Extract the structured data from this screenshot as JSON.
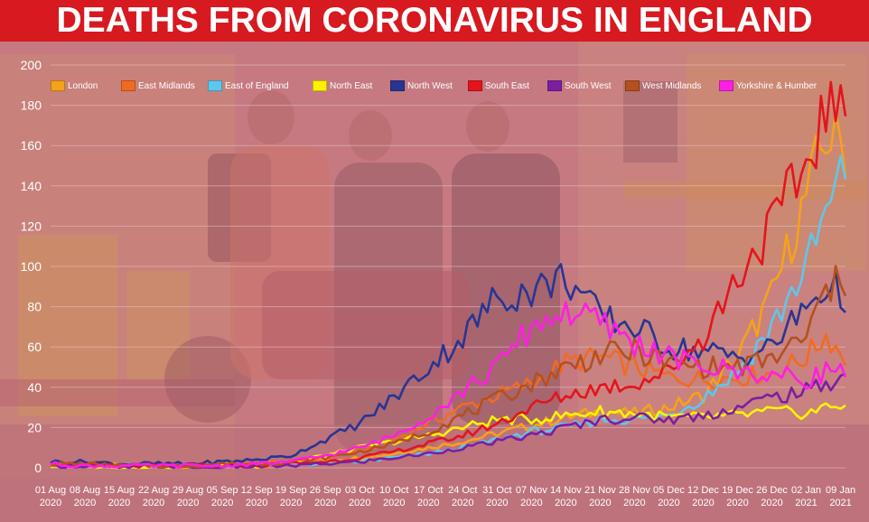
{
  "title": "DEATHS FROM CORONAVIRUS IN ENGLAND",
  "colors": {
    "title_bg": "#d71920",
    "title_text": "#ffffff",
    "tint": "#c06068",
    "grid": "#e8c4c8"
  },
  "chart_data": {
    "type": "line",
    "title": "",
    "xlabel": "",
    "ylabel": "",
    "ylim": [
      0,
      200
    ],
    "yticks": [
      0,
      20,
      40,
      60,
      80,
      100,
      120,
      140,
      160,
      180,
      200
    ],
    "grid": true,
    "legend_position": "top",
    "x_tick_labels": [
      [
        "01 Aug",
        "2020"
      ],
      [
        "08 Aug",
        "2020"
      ],
      [
        "15 Aug",
        "2020"
      ],
      [
        "22 Aug",
        "2020"
      ],
      [
        "29 Aug",
        "2020"
      ],
      [
        "05 Sep",
        "2020"
      ],
      [
        "12 Sep",
        "2020"
      ],
      [
        "19 Sep",
        "2020"
      ],
      [
        "26 Sep",
        "2020"
      ],
      [
        "03 Oct",
        "2020"
      ],
      [
        "10 Oct",
        "2020"
      ],
      [
        "17 Oct",
        "2020"
      ],
      [
        "24 Oct",
        "2020"
      ],
      [
        "31 Oct",
        "2020"
      ],
      [
        "07 Nov",
        "2020"
      ],
      [
        "14 Nov",
        "2020"
      ],
      [
        "21 Nov",
        "2020"
      ],
      [
        "28 Nov",
        "2020"
      ],
      [
        "05 Dec",
        "2020"
      ],
      [
        "12 Dec",
        "2020"
      ],
      [
        "19 Dec",
        "2020"
      ],
      [
        "26 Dec",
        "2020"
      ],
      [
        "02 Jan",
        "2021"
      ],
      [
        "09 Jan",
        "2021"
      ]
    ],
    "x_start": "2020-08-01",
    "x_end": "2021-01-10",
    "series": [
      {
        "name": "London",
        "color": "#f5a21b",
        "points": [
          [
            "2020-08-01",
            2
          ],
          [
            "2020-08-08",
            2
          ],
          [
            "2020-08-15",
            1
          ],
          [
            "2020-08-22",
            1
          ],
          [
            "2020-08-29",
            1
          ],
          [
            "2020-09-05",
            1
          ],
          [
            "2020-09-12",
            2
          ],
          [
            "2020-09-19",
            3
          ],
          [
            "2020-09-26",
            4
          ],
          [
            "2020-10-03",
            5
          ],
          [
            "2020-10-10",
            7
          ],
          [
            "2020-10-17",
            10
          ],
          [
            "2020-10-24",
            13
          ],
          [
            "2020-10-31",
            17
          ],
          [
            "2020-11-07",
            21
          ],
          [
            "2020-11-14",
            25
          ],
          [
            "2020-11-21",
            28
          ],
          [
            "2020-11-28",
            27
          ],
          [
            "2020-12-05",
            30
          ],
          [
            "2020-12-12",
            36
          ],
          [
            "2020-12-19",
            55
          ],
          [
            "2020-12-26",
            85
          ],
          [
            "2021-01-02",
            135
          ],
          [
            "2021-01-06",
            165
          ],
          [
            "2021-01-10",
            160
          ]
        ]
      },
      {
        "name": "East Midlands",
        "color": "#f06b22",
        "points": [
          [
            "2020-08-01",
            2
          ],
          [
            "2020-08-08",
            2
          ],
          [
            "2020-08-15",
            1
          ],
          [
            "2020-08-22",
            1
          ],
          [
            "2020-08-29",
            1
          ],
          [
            "2020-09-05",
            2
          ],
          [
            "2020-09-12",
            2
          ],
          [
            "2020-09-19",
            3
          ],
          [
            "2020-09-26",
            5
          ],
          [
            "2020-10-03",
            8
          ],
          [
            "2020-10-10",
            14
          ],
          [
            "2020-10-17",
            22
          ],
          [
            "2020-10-24",
            30
          ],
          [
            "2020-10-31",
            36
          ],
          [
            "2020-11-07",
            42
          ],
          [
            "2020-11-14",
            52
          ],
          [
            "2020-11-21",
            55
          ],
          [
            "2020-11-28",
            50
          ],
          [
            "2020-12-05",
            45
          ],
          [
            "2020-12-12",
            44
          ],
          [
            "2020-12-19",
            45
          ],
          [
            "2020-12-26",
            47
          ],
          [
            "2021-01-02",
            55
          ],
          [
            "2021-01-06",
            66
          ],
          [
            "2021-01-10",
            55
          ]
        ]
      },
      {
        "name": "East of England",
        "color": "#5ec7ee",
        "points": [
          [
            "2020-08-01",
            2
          ],
          [
            "2020-08-08",
            1
          ],
          [
            "2020-08-15",
            1
          ],
          [
            "2020-08-22",
            1
          ],
          [
            "2020-08-29",
            1
          ],
          [
            "2020-09-05",
            1
          ],
          [
            "2020-09-12",
            1
          ],
          [
            "2020-09-19",
            2
          ],
          [
            "2020-09-26",
            2
          ],
          [
            "2020-10-03",
            3
          ],
          [
            "2020-10-10",
            5
          ],
          [
            "2020-10-17",
            7
          ],
          [
            "2020-10-24",
            10
          ],
          [
            "2020-10-31",
            14
          ],
          [
            "2020-11-07",
            18
          ],
          [
            "2020-11-14",
            20
          ],
          [
            "2020-11-21",
            24
          ],
          [
            "2020-11-28",
            24
          ],
          [
            "2020-12-05",
            26
          ],
          [
            "2020-12-12",
            35
          ],
          [
            "2020-12-19",
            48
          ],
          [
            "2020-12-26",
            70
          ],
          [
            "2021-01-02",
            100
          ],
          [
            "2021-01-06",
            125
          ],
          [
            "2021-01-10",
            148
          ]
        ]
      },
      {
        "name": "North East",
        "color": "#fff200",
        "points": [
          [
            "2020-08-01",
            1
          ],
          [
            "2020-08-08",
            1
          ],
          [
            "2020-08-15",
            0
          ],
          [
            "2020-08-22",
            1
          ],
          [
            "2020-08-29",
            0
          ],
          [
            "2020-09-05",
            1
          ],
          [
            "2020-09-12",
            1
          ],
          [
            "2020-09-19",
            3
          ],
          [
            "2020-09-26",
            6
          ],
          [
            "2020-10-03",
            10
          ],
          [
            "2020-10-10",
            13
          ],
          [
            "2020-10-17",
            16
          ],
          [
            "2020-10-24",
            20
          ],
          [
            "2020-10-31",
            24
          ],
          [
            "2020-11-07",
            24
          ],
          [
            "2020-11-14",
            26
          ],
          [
            "2020-11-21",
            28
          ],
          [
            "2020-11-28",
            27
          ],
          [
            "2020-12-05",
            25
          ],
          [
            "2020-12-12",
            25
          ],
          [
            "2020-12-19",
            26
          ],
          [
            "2020-12-26",
            28
          ],
          [
            "2021-01-02",
            27
          ],
          [
            "2021-01-06",
            30
          ],
          [
            "2021-01-10",
            32
          ]
        ]
      },
      {
        "name": "North West",
        "color": "#283593",
        "points": [
          [
            "2020-08-01",
            3
          ],
          [
            "2020-08-08",
            3
          ],
          [
            "2020-08-15",
            2
          ],
          [
            "2020-08-22",
            2
          ],
          [
            "2020-08-29",
            2
          ],
          [
            "2020-09-05",
            3
          ],
          [
            "2020-09-12",
            4
          ],
          [
            "2020-09-19",
            6
          ],
          [
            "2020-09-26",
            14
          ],
          [
            "2020-10-03",
            22
          ],
          [
            "2020-10-10",
            35
          ],
          [
            "2020-10-17",
            50
          ],
          [
            "2020-10-24",
            65
          ],
          [
            "2020-10-31",
            85
          ],
          [
            "2020-11-07",
            88
          ],
          [
            "2020-11-14",
            95
          ],
          [
            "2020-11-21",
            75
          ],
          [
            "2020-11-28",
            70
          ],
          [
            "2020-12-05",
            60
          ],
          [
            "2020-12-12",
            58
          ],
          [
            "2020-12-19",
            55
          ],
          [
            "2020-12-26",
            60
          ],
          [
            "2021-01-02",
            80
          ],
          [
            "2021-01-06",
            90
          ],
          [
            "2021-01-10",
            86
          ]
        ]
      },
      {
        "name": "South East",
        "color": "#e4141c",
        "points": [
          [
            "2020-08-01",
            2
          ],
          [
            "2020-08-08",
            1
          ],
          [
            "2020-08-15",
            1
          ],
          [
            "2020-08-22",
            1
          ],
          [
            "2020-08-29",
            1
          ],
          [
            "2020-09-05",
            1
          ],
          [
            "2020-09-12",
            1
          ],
          [
            "2020-09-19",
            2
          ],
          [
            "2020-09-26",
            3
          ],
          [
            "2020-10-03",
            5
          ],
          [
            "2020-10-10",
            8
          ],
          [
            "2020-10-17",
            12
          ],
          [
            "2020-10-24",
            16
          ],
          [
            "2020-10-31",
            22
          ],
          [
            "2020-11-07",
            30
          ],
          [
            "2020-11-14",
            36
          ],
          [
            "2020-11-21",
            40
          ],
          [
            "2020-11-28",
            42
          ],
          [
            "2020-12-05",
            48
          ],
          [
            "2020-12-12",
            65
          ],
          [
            "2020-12-19",
            95
          ],
          [
            "2020-12-26",
            120
          ],
          [
            "2021-01-02",
            150
          ],
          [
            "2021-01-06",
            180
          ],
          [
            "2021-01-10",
            170
          ]
        ]
      },
      {
        "name": "South West",
        "color": "#7b1fa2",
        "points": [
          [
            "2020-08-01",
            1
          ],
          [
            "2020-08-08",
            1
          ],
          [
            "2020-08-15",
            0
          ],
          [
            "2020-08-22",
            1
          ],
          [
            "2020-08-29",
            0
          ],
          [
            "2020-09-05",
            0
          ],
          [
            "2020-09-12",
            1
          ],
          [
            "2020-09-19",
            1
          ],
          [
            "2020-09-26",
            2
          ],
          [
            "2020-10-03",
            3
          ],
          [
            "2020-10-10",
            5
          ],
          [
            "2020-10-17",
            7
          ],
          [
            "2020-10-24",
            10
          ],
          [
            "2020-10-31",
            13
          ],
          [
            "2020-11-07",
            16
          ],
          [
            "2020-11-14",
            20
          ],
          [
            "2020-11-21",
            24
          ],
          [
            "2020-11-28",
            25
          ],
          [
            "2020-12-05",
            24
          ],
          [
            "2020-12-12",
            26
          ],
          [
            "2020-12-19",
            30
          ],
          [
            "2020-12-26",
            35
          ],
          [
            "2021-01-02",
            38
          ],
          [
            "2021-01-06",
            42
          ],
          [
            "2021-01-10",
            45
          ]
        ]
      },
      {
        "name": "West Midlands",
        "color": "#b5501e",
        "points": [
          [
            "2020-08-01",
            2
          ],
          [
            "2020-08-08",
            2
          ],
          [
            "2020-08-15",
            1
          ],
          [
            "2020-08-22",
            1
          ],
          [
            "2020-08-29",
            1
          ],
          [
            "2020-09-05",
            2
          ],
          [
            "2020-09-12",
            2
          ],
          [
            "2020-09-19",
            3
          ],
          [
            "2020-09-26",
            5
          ],
          [
            "2020-10-03",
            8
          ],
          [
            "2020-10-10",
            12
          ],
          [
            "2020-10-17",
            18
          ],
          [
            "2020-10-24",
            26
          ],
          [
            "2020-10-31",
            34
          ],
          [
            "2020-11-07",
            42
          ],
          [
            "2020-11-14",
            50
          ],
          [
            "2020-11-21",
            56
          ],
          [
            "2020-11-28",
            58
          ],
          [
            "2020-12-05",
            52
          ],
          [
            "2020-12-12",
            50
          ],
          [
            "2020-12-19",
            50
          ],
          [
            "2020-12-26",
            54
          ],
          [
            "2021-01-02",
            65
          ],
          [
            "2021-01-06",
            88
          ],
          [
            "2021-01-10",
            93
          ]
        ]
      },
      {
        "name": "Yorkshire & Humber",
        "color": "#ff1ee6",
        "points": [
          [
            "2020-08-01",
            2
          ],
          [
            "2020-08-08",
            1
          ],
          [
            "2020-08-15",
            1
          ],
          [
            "2020-08-22",
            1
          ],
          [
            "2020-08-29",
            1
          ],
          [
            "2020-09-05",
            1
          ],
          [
            "2020-09-12",
            2
          ],
          [
            "2020-09-19",
            3
          ],
          [
            "2020-09-26",
            6
          ],
          [
            "2020-10-03",
            10
          ],
          [
            "2020-10-10",
            16
          ],
          [
            "2020-10-17",
            26
          ],
          [
            "2020-10-24",
            38
          ],
          [
            "2020-10-31",
            50
          ],
          [
            "2020-11-07",
            70
          ],
          [
            "2020-11-14",
            78
          ],
          [
            "2020-11-21",
            72
          ],
          [
            "2020-11-28",
            62
          ],
          [
            "2020-12-05",
            55
          ],
          [
            "2020-12-12",
            50
          ],
          [
            "2020-12-19",
            48
          ],
          [
            "2020-12-26",
            46
          ],
          [
            "2021-01-02",
            44
          ],
          [
            "2021-01-06",
            48
          ],
          [
            "2021-01-10",
            50
          ]
        ]
      }
    ]
  }
}
